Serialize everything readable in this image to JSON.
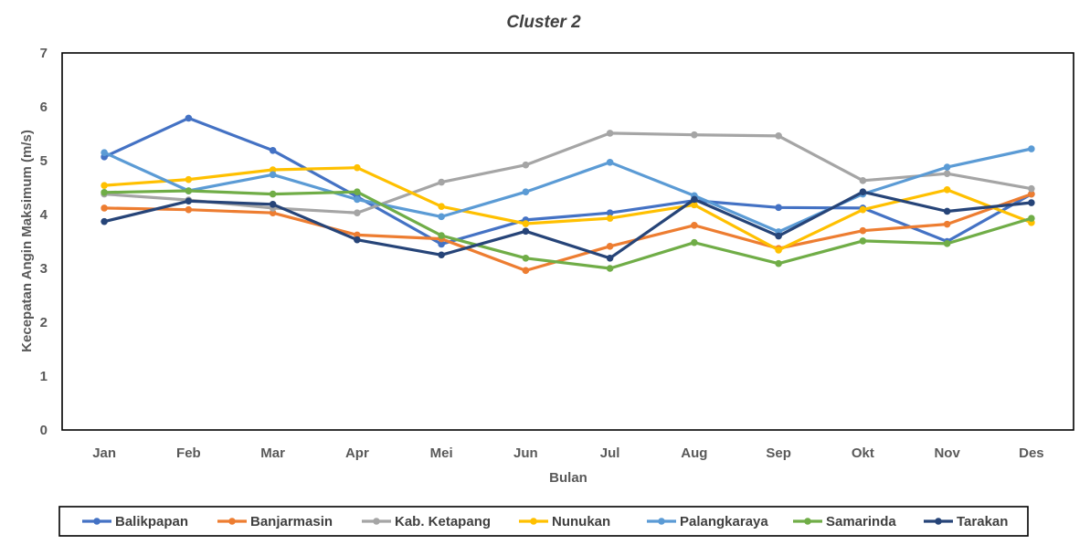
{
  "chart_data": {
    "type": "line",
    "title": "Cluster 2",
    "xlabel": "Bulan",
    "ylabel": "Kecepatan Angin Maksimum (m/s)",
    "ylim": [
      0,
      7
    ],
    "yticks": [
      0,
      1,
      2,
      3,
      4,
      5,
      6,
      7
    ],
    "grid": false,
    "legend_position": "bottom",
    "categories": [
      "Jan",
      "Feb",
      "Mar",
      "Apr",
      "Mei",
      "Jun",
      "Jul",
      "Aug",
      "Sep",
      "Okt",
      "Nov",
      "Des"
    ],
    "series": [
      {
        "name": "Balikpapan",
        "color": "#4472C4",
        "values": [
          5.07,
          5.79,
          5.19,
          4.33,
          3.45,
          3.9,
          4.03,
          4.26,
          4.13,
          4.12,
          3.5,
          4.38
        ]
      },
      {
        "name": "Banjarmasin",
        "color": "#ED7D31",
        "values": [
          4.12,
          4.09,
          4.03,
          3.62,
          3.55,
          2.96,
          3.41,
          3.8,
          3.37,
          3.7,
          3.82,
          4.38
        ]
      },
      {
        "name": "Kab. Ketapang",
        "color": "#A5A5A5",
        "values": [
          4.38,
          4.27,
          4.12,
          4.03,
          4.6,
          4.92,
          5.51,
          5.48,
          5.46,
          4.63,
          4.76,
          4.48
        ]
      },
      {
        "name": "Nunukan",
        "color": "#FFC000",
        "values": [
          4.54,
          4.65,
          4.83,
          4.87,
          4.15,
          3.83,
          3.93,
          4.18,
          3.34,
          4.09,
          4.46,
          3.85
        ]
      },
      {
        "name": "Palangkaraya",
        "color": "#5B9BD5",
        "values": [
          5.15,
          4.44,
          4.74,
          4.28,
          3.96,
          4.42,
          4.97,
          4.35,
          3.68,
          4.38,
          4.88,
          5.22
        ]
      },
      {
        "name": "Samarinda",
        "color": "#70AD47",
        "values": [
          4.41,
          4.44,
          4.38,
          4.42,
          3.61,
          3.19,
          3.0,
          3.48,
          3.09,
          3.51,
          3.46,
          3.93
        ]
      },
      {
        "name": "Tarakan",
        "color": "#264478",
        "values": [
          3.87,
          4.25,
          4.19,
          3.53,
          3.25,
          3.69,
          3.19,
          4.28,
          3.6,
          4.42,
          4.06,
          4.22
        ]
      }
    ]
  }
}
